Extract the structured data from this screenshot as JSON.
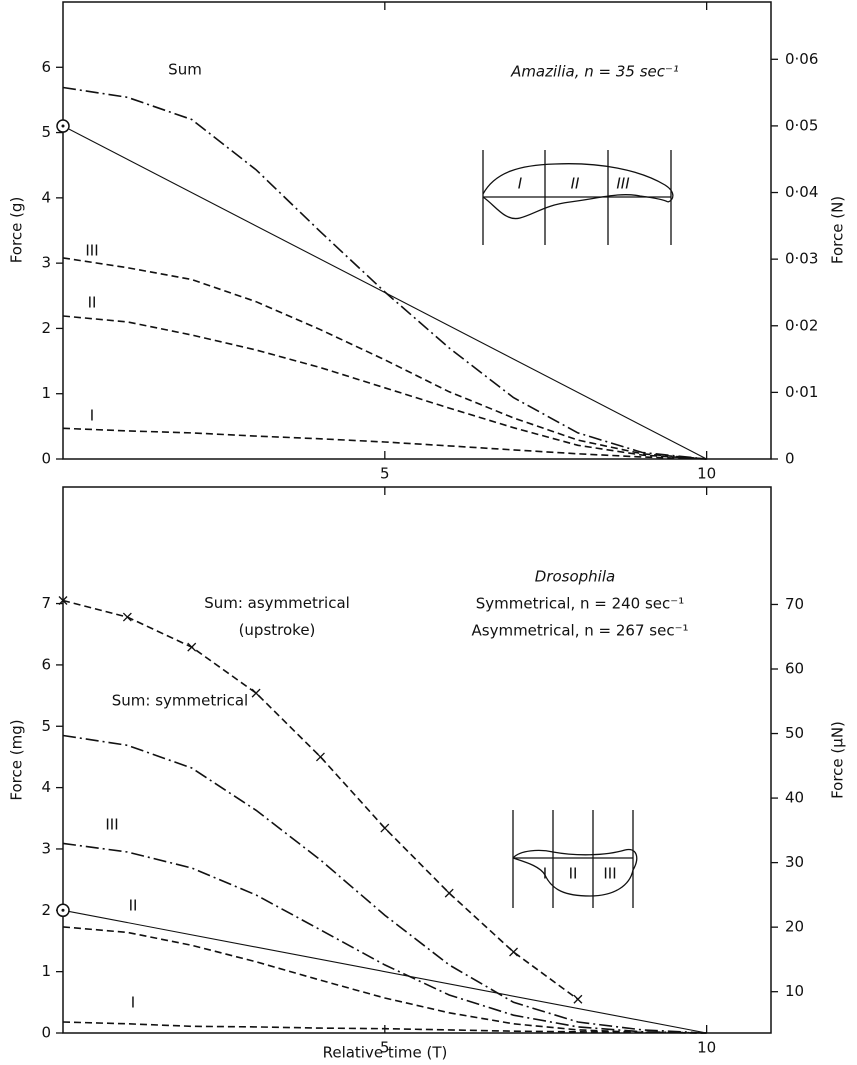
{
  "chart_data": [
    {
      "type": "line",
      "annotations": [
        "Amazilia, n = 35 sec⁻¹"
      ],
      "y_label": "Force (g)",
      "y2_label": "Force (N)",
      "xlim": [
        0,
        11
      ],
      "xticks": [
        5,
        10
      ],
      "ylim": [
        0,
        7
      ],
      "yticks": [
        0,
        1,
        2,
        3,
        4,
        5,
        6
      ],
      "y2lim": [
        0,
        0.0686
      ],
      "y2ticks": [
        0,
        {
          "value": 0.01,
          "label": "0·01"
        },
        {
          "value": 0.02,
          "label": "0·02"
        },
        {
          "value": 0.03,
          "label": "0·03"
        },
        {
          "value": 0.04,
          "label": "0·04"
        },
        {
          "value": 0.05,
          "label": "0·05"
        },
        {
          "value": 0.06,
          "label": "0·06"
        }
      ],
      "inset_labels": [
        "I",
        "II",
        "III"
      ],
      "series": [
        {
          "name": "Sum",
          "color": "#111111",
          "style": "dash-dot",
          "x": [
            0,
            1,
            2,
            3,
            4,
            5,
            6,
            7,
            8,
            9,
            10
          ],
          "values": [
            5.69,
            5.54,
            5.2,
            4.43,
            3.48,
            2.56,
            1.7,
            0.94,
            0.4,
            0.1,
            0
          ]
        },
        {
          "name": "III",
          "color": "#111111",
          "style": "dashed",
          "x": [
            0,
            1,
            2,
            3,
            4,
            5,
            6,
            7,
            8,
            9,
            10
          ],
          "values": [
            3.08,
            2.93,
            2.75,
            2.41,
            1.98,
            1.52,
            1.03,
            0.63,
            0.29,
            0.08,
            0
          ]
        },
        {
          "name": "II",
          "color": "#111111",
          "style": "dashed",
          "x": [
            0,
            1,
            2,
            3,
            4,
            5,
            6,
            7,
            8,
            9,
            10
          ],
          "values": [
            2.19,
            2.1,
            1.9,
            1.67,
            1.4,
            1.09,
            0.78,
            0.48,
            0.21,
            0.06,
            0
          ]
        },
        {
          "name": "I",
          "color": "#111111",
          "style": "dashed",
          "x": [
            0,
            1,
            2,
            3,
            4,
            5,
            6,
            7,
            8,
            9,
            10
          ],
          "values": [
            0.47,
            0.43,
            0.4,
            0.35,
            0.31,
            0.26,
            0.2,
            0.14,
            0.08,
            0.03,
            0
          ]
        },
        {
          "color": "#111111",
          "style": "solid",
          "marker": "circle",
          "x": [
            0,
            10
          ],
          "values": [
            5.1,
            0
          ]
        }
      ]
    },
    {
      "type": "line",
      "annotations": [
        "Drosophila",
        "Symmetrical, n = 240 sec⁻¹",
        "Asymmetrical, n = 267 sec⁻¹"
      ],
      "x_label": "Relative time (T)",
      "y_label": "Force (mg)",
      "y2_label": "Force (μN)",
      "xlim": [
        0,
        11
      ],
      "xticks": [
        5,
        10
      ],
      "ylim": [
        0,
        8.9
      ],
      "yticks": [
        0,
        1,
        2,
        3,
        4,
        5,
        6,
        7
      ],
      "y2lim": [
        3.6,
        88.2
      ],
      "y2ticks": [
        10,
        20,
        30,
        40,
        50,
        60,
        70
      ],
      "inset_labels": [
        "I",
        "II",
        "III"
      ],
      "series": [
        {
          "name": "Sum: asymmetrical (upstroke)",
          "color": "#111111",
          "style": "dashed",
          "marker": "x",
          "x": [
            0,
            1,
            2,
            3,
            4,
            5,
            6,
            7,
            8
          ],
          "values": [
            7.05,
            6.78,
            6.29,
            5.54,
            4.5,
            3.34,
            2.28,
            1.32,
            0.55
          ]
        },
        {
          "name": "Sum: symmetrical",
          "color": "#111111",
          "style": "dash-dot",
          "x": [
            0,
            1,
            2,
            3,
            4,
            5,
            6,
            7,
            8,
            9,
            10
          ],
          "values": [
            4.85,
            4.69,
            4.32,
            3.63,
            2.82,
            1.92,
            1.11,
            0.5,
            0.18,
            0.05,
            0
          ]
        },
        {
          "name": "III",
          "color": "#111111",
          "style": "dash-dot",
          "x": [
            0,
            1,
            2,
            3,
            4,
            5,
            6,
            7,
            8,
            9,
            10
          ],
          "values": [
            3.09,
            2.95,
            2.69,
            2.25,
            1.68,
            1.11,
            0.62,
            0.29,
            0.1,
            0.02,
            0
          ]
        },
        {
          "name": "II",
          "color": "#111111",
          "style": "dashed",
          "x": [
            0,
            1,
            2,
            3,
            4,
            5,
            6,
            7,
            8,
            9,
            10
          ],
          "values": [
            1.73,
            1.64,
            1.43,
            1.16,
            0.86,
            0.57,
            0.33,
            0.15,
            0.05,
            0.01,
            0
          ]
        },
        {
          "name": "I",
          "color": "#111111",
          "style": "dashed",
          "x": [
            0,
            1,
            2,
            3,
            4,
            5,
            6,
            7,
            8,
            9,
            10
          ],
          "values": [
            0.18,
            0.15,
            0.11,
            0.1,
            0.08,
            0.07,
            0.05,
            0.03,
            0.02,
            0.01,
            0
          ]
        },
        {
          "color": "#111111",
          "style": "solid",
          "marker": "circle",
          "x": [
            0,
            10
          ],
          "values": [
            2.0,
            0
          ]
        }
      ]
    }
  ]
}
